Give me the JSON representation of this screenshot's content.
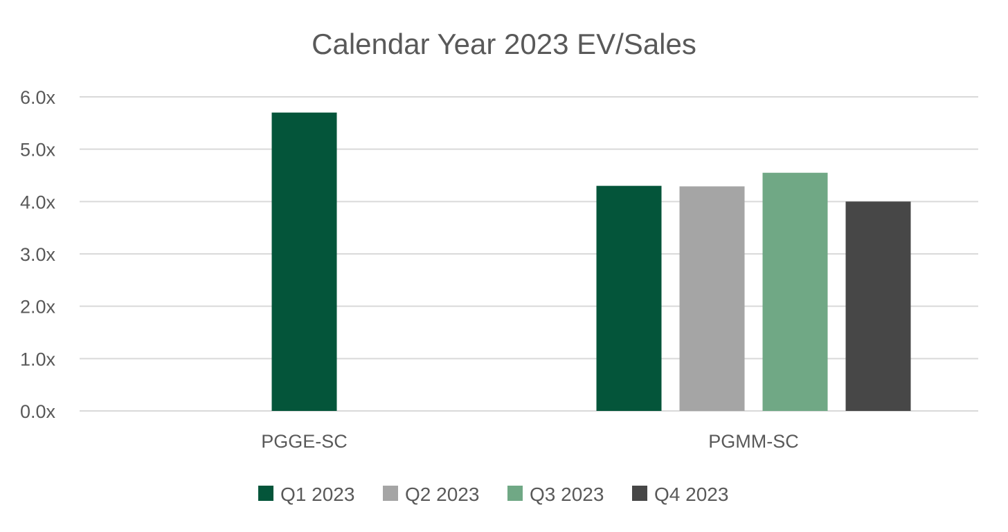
{
  "chart_data": {
    "type": "bar",
    "title": "Calendar Year 2023 EV/Sales",
    "xlabel": "",
    "ylabel": "",
    "categories": [
      "PGGE-SC",
      "PGMM-SC"
    ],
    "series": [
      {
        "name": "Q1 2023",
        "color": "#04553a",
        "values": [
          5.7,
          4.3
        ]
      },
      {
        "name": "Q2 2023",
        "color": "#a5a5a5",
        "values": [
          null,
          4.29
        ]
      },
      {
        "name": "Q3 2023",
        "color": "#70a885",
        "values": [
          null,
          4.55
        ]
      },
      {
        "name": "Q4 2023",
        "color": "#474747",
        "values": [
          null,
          4.0
        ]
      }
    ],
    "ylim": [
      0,
      6
    ],
    "yticks": [
      0,
      1,
      2,
      3,
      4,
      5,
      6
    ],
    "ytick_labels": [
      "0.0x",
      "1.0x",
      "2.0x",
      "3.0x",
      "4.0x",
      "5.0x",
      "6.0x"
    ],
    "grid": true,
    "legend_position": "bottom"
  }
}
